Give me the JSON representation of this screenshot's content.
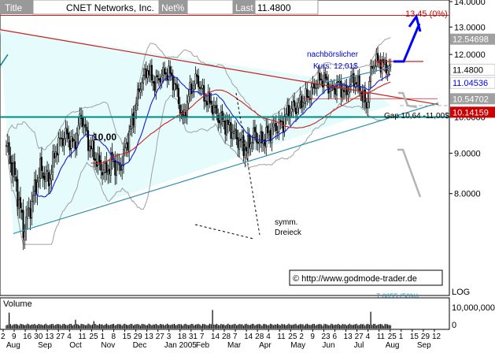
{
  "header": {
    "title_label": "Title",
    "title_value": "CNET Networks, Inc.",
    "net_label": "Net%",
    "last_label": "Last",
    "last_value": "11.4800"
  },
  "chart_data": {
    "type": "candlestick",
    "title": "CNET Networks, Inc.",
    "scale": "log",
    "ylim": [
      7.0,
      14.0
    ],
    "y_ticks": [
      "14.0000",
      "13.0000",
      "12.0000",
      "11.0000",
      "10.0000",
      "9.0000",
      "8.0000"
    ],
    "log_label": "LOG",
    "x_tick_labels": [
      "2",
      "9",
      "16",
      "30",
      "13",
      "27",
      "4",
      "11",
      "25",
      "1",
      "8",
      "15",
      "29",
      "13",
      "27",
      "3",
      "18",
      "31",
      "7",
      "14",
      "28",
      "7",
      "14",
      "28",
      "4",
      "11",
      "25",
      "2",
      "9",
      "23",
      "6",
      "13",
      "27",
      "4",
      "11",
      "25",
      "1",
      "15",
      "29",
      "12"
    ],
    "x_month_labels": [
      "Aug",
      "Sep",
      "Oct",
      "Nov",
      "Dec",
      "Jan 2005",
      "Feb",
      "Mar",
      "Apr",
      "May",
      "Jun",
      "Jul",
      "Aug",
      "Sep"
    ],
    "price_badges": [
      {
        "label": "12.54698",
        "value": 12.547,
        "color": "#ffffff",
        "bg": "#a0a0a0"
      },
      {
        "label": "11.4800",
        "value": 11.48,
        "color": "#000000",
        "bg": "#ffffff"
      },
      {
        "label": "11.04536",
        "value": 11.045,
        "color": "#0000ff",
        "bg": "#ffffff"
      },
      {
        "label": "10.54702",
        "value": 10.547,
        "color": "#ffffff",
        "bg": "#a0a0a0"
      },
      {
        "label": "10.14159",
        "value": 10.142,
        "color": "#ffffff",
        "bg": "#cc0000"
      }
    ],
    "annotations": {
      "target": "13.45 (0%)",
      "after_hours_line1": "nachbörslicher",
      "after_hours_line2": "Kurs:  12,01$",
      "gap": "Gap 10,64 -11,00$",
      "level": "10,00",
      "pattern_line1": "symm.",
      "pattern_line2": "Dreieck",
      "copyright": "© http://www.godmode-trader.de",
      "bottom_fragment": "7.0055 (50%)"
    },
    "series": [
      {
        "name": "Price",
        "note": "daily candlesticks"
      },
      {
        "name": "MA blue"
      },
      {
        "name": "MA red"
      },
      {
        "name": "Bollinger bands"
      }
    ],
    "anchors": [
      {
        "day": 0,
        "price": 9.2
      },
      {
        "day": 6,
        "price": 8.4
      },
      {
        "day": 12,
        "price": 7.2
      },
      {
        "day": 18,
        "price": 7.8
      },
      {
        "day": 24,
        "price": 8.6
      },
      {
        "day": 30,
        "price": 8.3
      },
      {
        "day": 36,
        "price": 9.2
      },
      {
        "day": 42,
        "price": 9.5
      },
      {
        "day": 48,
        "price": 9.2
      },
      {
        "day": 53,
        "price": 10.05
      },
      {
        "day": 58,
        "price": 9.3
      },
      {
        "day": 64,
        "price": 8.8
      },
      {
        "day": 70,
        "price": 8.5
      },
      {
        "day": 75,
        "price": 8.8
      },
      {
        "day": 80,
        "price": 8.6
      },
      {
        "day": 85,
        "price": 9.2
      },
      {
        "day": 90,
        "price": 10.0
      },
      {
        "day": 95,
        "price": 11.0
      },
      {
        "day": 100,
        "price": 11.5
      },
      {
        "day": 105,
        "price": 11.0
      },
      {
        "day": 110,
        "price": 11.3
      },
      {
        "day": 115,
        "price": 11.4
      },
      {
        "day": 120,
        "price": 10.9
      },
      {
        "day": 125,
        "price": 9.9
      },
      {
        "day": 130,
        "price": 10.8
      },
      {
        "day": 135,
        "price": 11.2
      },
      {
        "day": 140,
        "price": 10.6
      },
      {
        "day": 145,
        "price": 10.4
      },
      {
        "day": 150,
        "price": 10.0
      },
      {
        "day": 155,
        "price": 9.8
      },
      {
        "day": 160,
        "price": 9.6
      },
      {
        "day": 165,
        "price": 9.3
      },
      {
        "day": 170,
        "price": 9.1
      },
      {
        "day": 175,
        "price": 9.5
      },
      {
        "day": 180,
        "price": 9.3
      },
      {
        "day": 185,
        "price": 9.5
      },
      {
        "day": 190,
        "price": 9.7
      },
      {
        "day": 195,
        "price": 9.8
      },
      {
        "day": 200,
        "price": 10.2
      },
      {
        "day": 205,
        "price": 10.3
      },
      {
        "day": 210,
        "price": 10.5
      },
      {
        "day": 215,
        "price": 10.7
      },
      {
        "day": 220,
        "price": 11.1
      },
      {
        "day": 225,
        "price": 11.2
      },
      {
        "day": 230,
        "price": 10.8
      },
      {
        "day": 235,
        "price": 11.0
      },
      {
        "day": 240,
        "price": 10.7
      },
      {
        "day": 245,
        "price": 11.2
      },
      {
        "day": 250,
        "price": 10.9
      },
      {
        "day": 255,
        "price": 10.3
      },
      {
        "day": 258,
        "price": 11.4
      },
      {
        "day": 261,
        "price": 11.8
      },
      {
        "day": 265,
        "price": 11.7
      },
      {
        "day": 268,
        "price": 11.6
      },
      {
        "day": 272,
        "price": 11.5
      }
    ],
    "volume_panel": {
      "label": "Volume",
      "ticks": [
        "10,000,000",
        "0"
      ],
      "ylim": [
        0,
        12000000
      ]
    }
  },
  "colors": {
    "triangle_fill": "#e6fbfb",
    "band": "#a0a0a0",
    "ma_blue": "#1a1ad8",
    "ma_red": "#cc2020",
    "trend_red": "#cc2020",
    "trend_teal": "#2a8fb0",
    "support": "#008888",
    "arrow": "#0000ff",
    "projection": "#b4b4b4"
  }
}
